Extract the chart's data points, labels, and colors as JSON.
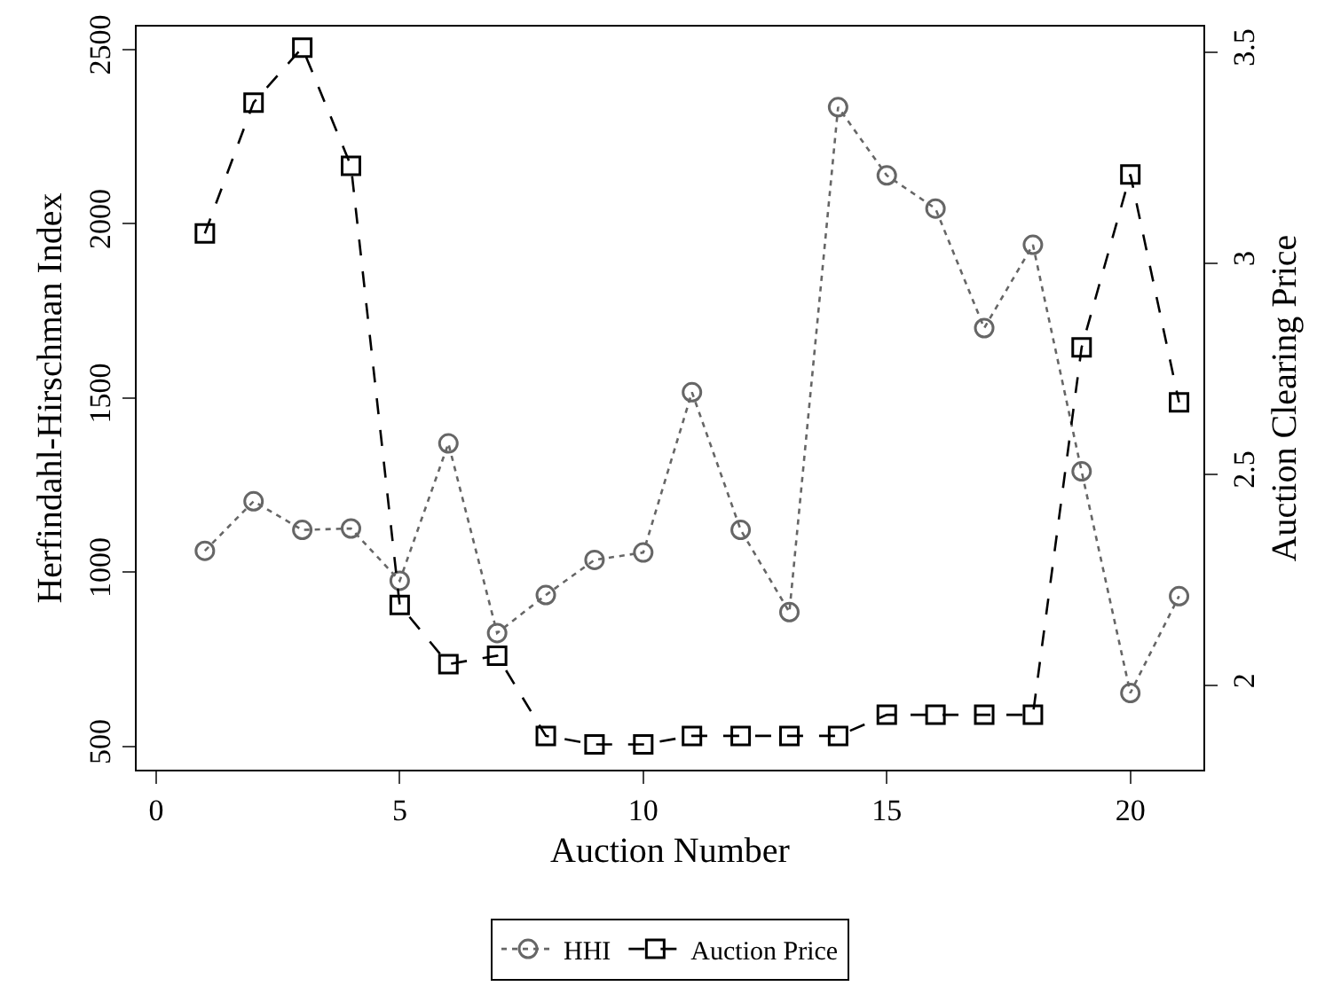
{
  "chart_data": {
    "type": "line",
    "xlabel": "Auction Number",
    "ylabel": "Herfindahl-Hirschman Index",
    "y2label": "Auction Clearing Price",
    "x": [
      1,
      2,
      3,
      4,
      5,
      6,
      7,
      8,
      9,
      10,
      11,
      12,
      13,
      14,
      15,
      16,
      17,
      18,
      19,
      20,
      21
    ],
    "series": [
      {
        "name": "HHI",
        "color": "#666666",
        "marker": "circle",
        "line_style": "dotted",
        "values": [
          1061,
          1203,
          1121,
          1125,
          975,
          1369,
          825,
          934,
          1035,
          1056,
          1516,
          1121,
          885,
          2334,
          2138,
          2043,
          1700,
          1939,
          1289,
          653,
          931
        ]
      },
      {
        "name": "Auction Price",
        "color": "#000000",
        "marker": "square",
        "line_style": "dashed",
        "axis": "y2",
        "values": [
          3.07,
          3.38,
          3.51,
          3.23,
          2.19,
          2.05,
          2.07,
          1.88,
          1.86,
          1.86,
          1.88,
          1.88,
          1.88,
          1.88,
          1.93,
          1.93,
          1.93,
          1.93,
          2.8,
          3.21,
          2.67
        ]
      }
    ],
    "xlim": [
      -0.4,
      21.5
    ],
    "xticks": [
      0,
      5,
      10,
      15,
      20
    ],
    "ylim": [
      433,
      2565
    ],
    "yticks": [
      500,
      1000,
      1500,
      2000,
      2500
    ],
    "y2lim": [
      1.8,
      3.56
    ],
    "y2ticks": [
      2,
      2.5,
      3,
      3.5
    ],
    "grid": false,
    "legend": "bottom"
  }
}
